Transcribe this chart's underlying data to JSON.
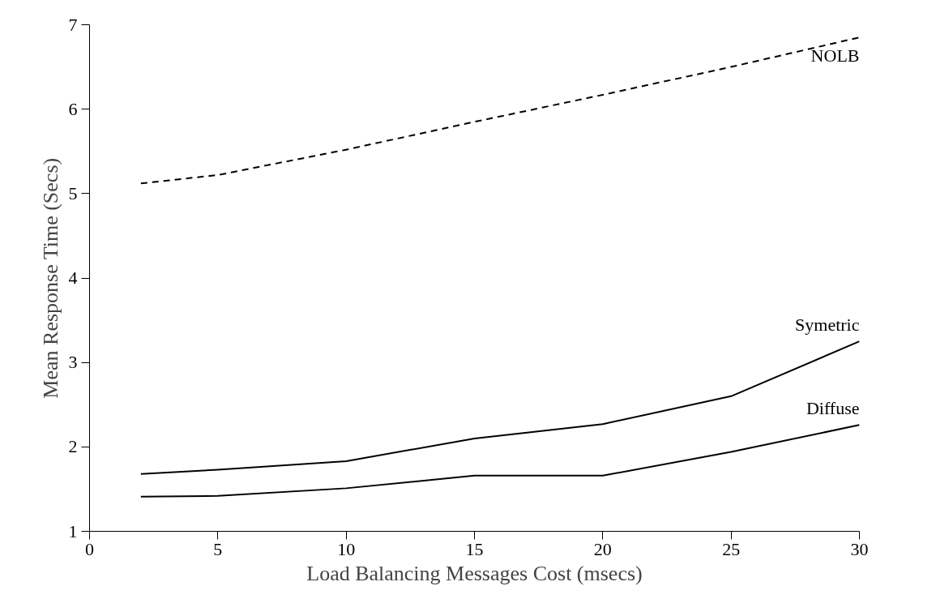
{
  "chart_data": {
    "type": "line",
    "xlabel": "Load Balancing Messages Cost (msecs)",
    "ylabel": "Mean Response Time (Secs)",
    "x": [
      2,
      5,
      10,
      15,
      20,
      25,
      30
    ],
    "series": [
      {
        "name": "NOLB",
        "color": "#000000",
        "line_style": "dashed",
        "values": [
          5.12,
          5.22,
          5.52,
          5.85,
          6.17,
          6.5,
          6.85
        ]
      },
      {
        "name": "Symetric",
        "color": "#000000",
        "line_style": "solid",
        "values": [
          1.68,
          1.73,
          1.83,
          2.1,
          2.27,
          2.6,
          3.25
        ]
      },
      {
        "name": "Diffuse",
        "color": "#000000",
        "line_style": "solid",
        "values": [
          1.41,
          1.42,
          1.51,
          1.66,
          1.66,
          1.94,
          2.26
        ]
      }
    ],
    "xlim": [
      0,
      30
    ],
    "ylim": [
      1,
      7
    ],
    "xticks": [
      0,
      5,
      10,
      15,
      20,
      25,
      30
    ],
    "yticks": [
      1,
      2,
      3,
      4,
      5,
      6,
      7
    ],
    "grid": false,
    "marker": "none"
  }
}
